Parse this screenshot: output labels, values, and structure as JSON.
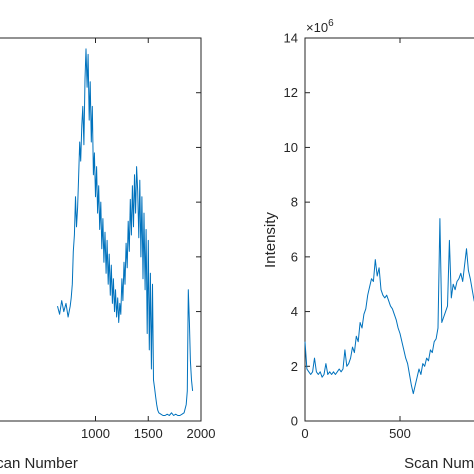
{
  "chart_data": [
    {
      "type": "line",
      "panel": "left",
      "xlabel": "Scan Number",
      "ylabel": "",
      "xlim": [
        0,
        2000
      ],
      "xticks": [
        1000,
        1500,
        2000
      ],
      "xtick_labels": [
        "1000",
        "1500",
        "2000"
      ],
      "ylim": [
        0,
        14
      ],
      "grid": false,
      "series_color": "#0072BD",
      "series": [
        {
          "x": [
            640,
            660,
            680,
            700,
            720,
            740,
            760,
            770,
            780,
            790,
            800,
            810,
            820,
            830,
            840,
            850,
            860,
            870,
            880,
            890,
            900,
            910,
            920,
            930,
            940,
            950,
            960,
            970,
            980,
            990,
            1000,
            1010,
            1020,
            1030,
            1040,
            1050,
            1060,
            1070,
            1080,
            1090,
            1100,
            1110,
            1120,
            1130,
            1140,
            1150,
            1160,
            1170,
            1180,
            1190,
            1200,
            1210,
            1220,
            1230,
            1240,
            1250,
            1260,
            1270,
            1280,
            1290,
            1300,
            1310,
            1320,
            1330,
            1340,
            1350,
            1360,
            1370,
            1380,
            1390,
            1400,
            1410,
            1420,
            1430,
            1440,
            1450,
            1460,
            1470,
            1480,
            1490,
            1500,
            1510,
            1520,
            1530,
            1540,
            1550,
            1560,
            1570,
            1580,
            1590,
            1600,
            1620,
            1640,
            1660,
            1680,
            1700,
            1720,
            1740,
            1760,
            1780,
            1800,
            1820,
            1840,
            1860,
            1870,
            1880,
            1890,
            1900,
            1910,
            1920
          ],
          "y": [
            4.2,
            3.9,
            4.4,
            4.0,
            4.3,
            3.8,
            4.2,
            4.5,
            5.0,
            6.2,
            6.8,
            8.2,
            7.1,
            7.8,
            8.9,
            10.2,
            9.5,
            10.8,
            11.5,
            10.1,
            12.5,
            13.6,
            12.2,
            13.4,
            11.0,
            12.4,
            10.2,
            11.5,
            9.0,
            9.8,
            8.2,
            9.3,
            7.6,
            8.6,
            7.0,
            8.0,
            6.3,
            7.4,
            5.8,
            6.9,
            5.4,
            6.6,
            5.0,
            6.1,
            4.6,
            5.7,
            4.3,
            5.2,
            4.0,
            4.8,
            3.8,
            4.5,
            3.6,
            4.3,
            3.9,
            5.2,
            4.4,
            5.8,
            5.0,
            6.5,
            5.6,
            7.3,
            6.2,
            8.1,
            6.8,
            8.6,
            7.1,
            9.0,
            7.6,
            9.3,
            8.4,
            6.7,
            8.8,
            6.0,
            8.2,
            5.2,
            7.6,
            4.8,
            7.0,
            3.2,
            6.6,
            2.6,
            5.4,
            1.9,
            5.0,
            1.5,
            1.2,
            0.9,
            0.6,
            0.4,
            0.3,
            0.25,
            0.2,
            0.2,
            0.25,
            0.2,
            0.3,
            0.2,
            0.25,
            0.2,
            0.2,
            0.25,
            0.3,
            0.6,
            1.1,
            4.8,
            3.6,
            2.2,
            1.5,
            1.1
          ]
        }
      ]
    },
    {
      "type": "line",
      "panel": "right",
      "xlabel": "Scan Number",
      "ylabel": "Intensity",
      "y_multiplier": "×10",
      "y_multiplier_exponent": "6",
      "xlim": [
        0,
        1000
      ],
      "xticks": [
        0,
        500
      ],
      "xtick_labels": [
        "0",
        "500"
      ],
      "ylim": [
        0,
        14
      ],
      "yticks": [
        0,
        2,
        4,
        6,
        8,
        10,
        12,
        14
      ],
      "ytick_labels": [
        "0",
        "2",
        "4",
        "6",
        "8",
        "10",
        "12",
        "14"
      ],
      "grid": false,
      "series_color": "#0072BD",
      "series": [
        {
          "x": [
            0,
            10,
            20,
            30,
            40,
            50,
            60,
            70,
            80,
            90,
            100,
            110,
            120,
            130,
            140,
            150,
            160,
            170,
            180,
            190,
            200,
            210,
            220,
            230,
            240,
            250,
            260,
            270,
            280,
            290,
            300,
            310,
            320,
            330,
            340,
            350,
            360,
            370,
            380,
            390,
            400,
            410,
            420,
            430,
            440,
            450,
            460,
            470,
            480,
            490,
            500,
            510,
            520,
            530,
            540,
            550,
            560,
            570,
            580,
            590,
            600,
            610,
            620,
            630,
            640,
            650,
            660,
            670,
            680,
            690,
            700,
            710,
            720,
            730,
            740,
            750,
            760,
            770,
            780,
            790,
            800,
            810,
            820,
            830,
            840,
            850,
            860,
            870,
            880,
            890,
            900
          ],
          "y": [
            2.9,
            1.9,
            1.8,
            1.7,
            1.8,
            2.3,
            1.8,
            1.7,
            1.8,
            1.6,
            1.7,
            2.1,
            1.7,
            1.8,
            1.7,
            1.8,
            1.7,
            1.8,
            1.9,
            1.8,
            1.9,
            2.6,
            2.0,
            2.1,
            2.3,
            2.7,
            2.5,
            3.1,
            2.9,
            3.6,
            3.4,
            3.9,
            4.1,
            4.6,
            4.9,
            5.2,
            5.1,
            5.9,
            5.3,
            5.6,
            4.8,
            4.6,
            4.5,
            4.6,
            4.4,
            4.2,
            4.1,
            3.9,
            3.7,
            3.4,
            3.2,
            2.9,
            2.6,
            2.3,
            2.1,
            1.7,
            1.3,
            1.0,
            1.3,
            1.6,
            1.9,
            1.7,
            2.1,
            2.0,
            2.3,
            2.2,
            2.6,
            2.5,
            2.9,
            3.0,
            3.4,
            7.4,
            3.6,
            3.8,
            4.0,
            4.2,
            6.6,
            4.5,
            5.0,
            4.8,
            5.1,
            5.2,
            5.4,
            5.1,
            5.7,
            6.3,
            5.5,
            5.2,
            4.8,
            4.4,
            4.2
          ]
        }
      ]
    }
  ]
}
